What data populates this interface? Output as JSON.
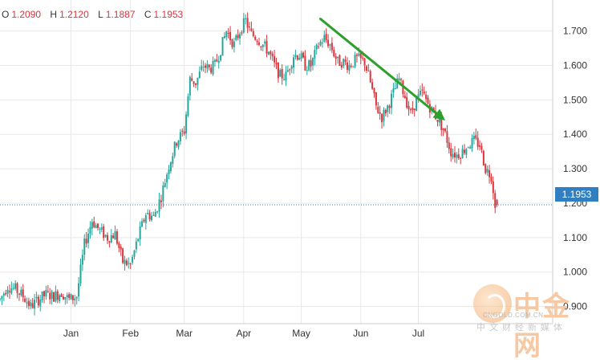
{
  "ohlc": {
    "o_label": "O",
    "o_value": "1.2090",
    "h_label": "H",
    "h_value": "1.2120",
    "l_label": "L",
    "l_value": "1.1887",
    "c_label": "C",
    "c_value": "1.1953"
  },
  "price_label": "1.1953",
  "watermark": {
    "name_cn": "中金网",
    "url": "CNGOLD.COM.CN",
    "subtitle": "中文财经新媒体"
  },
  "colors": {
    "up": "#26a69a",
    "down": "#d9363e",
    "grid": "#e8e8e8",
    "axis_text": "#333333",
    "arrow": "#2ca02c",
    "price_line": "#2f7fc1"
  },
  "chart_data": {
    "type": "candlestick",
    "title": "",
    "y_axis": {
      "range": [
        0.85,
        1.79
      ],
      "ticks": [
        0.9,
        1.0,
        1.1,
        1.2,
        1.3,
        1.4,
        1.5,
        1.6,
        1.7
      ],
      "tick_labels": [
        "0.900",
        "1.000",
        "1.100",
        "1.200",
        "1.300",
        "1.400",
        "1.500",
        "1.600",
        "1.700"
      ]
    },
    "x_axis": {
      "labels": [
        "Jan",
        "Feb",
        "Mar",
        "Apr",
        "May",
        "Jun",
        "Jul"
      ],
      "label_positions_day": [
        31,
        62,
        90,
        121,
        151,
        182,
        212
      ],
      "range_day": [
        -6,
        282
      ]
    },
    "last_price": 1.1953,
    "trend_arrow": {
      "direction": "down",
      "from": {
        "day": 161,
        "price": 1.735
      },
      "to": {
        "day": 226,
        "price": 1.44
      }
    },
    "anchors": [
      [
        -6,
        0.92
      ],
      [
        -2,
        0.96
      ],
      [
        2,
        0.95
      ],
      [
        6,
        0.93
      ],
      [
        10,
        0.9
      ],
      [
        14,
        0.92
      ],
      [
        18,
        0.935
      ],
      [
        22,
        0.93
      ],
      [
        26,
        0.94
      ],
      [
        30,
        0.92
      ],
      [
        34,
        0.93
      ],
      [
        38,
        1.08
      ],
      [
        42,
        1.15
      ],
      [
        46,
        1.12
      ],
      [
        50,
        1.1
      ],
      [
        54,
        1.11
      ],
      [
        58,
        1.03
      ],
      [
        62,
        1.02
      ],
      [
        66,
        1.1
      ],
      [
        70,
        1.17
      ],
      [
        74,
        1.16
      ],
      [
        78,
        1.22
      ],
      [
        82,
        1.31
      ],
      [
        86,
        1.38
      ],
      [
        90,
        1.41
      ],
      [
        93,
        1.56
      ],
      [
        96,
        1.55
      ],
      [
        100,
        1.6
      ],
      [
        103,
        1.59
      ],
      [
        106,
        1.6
      ],
      [
        108,
        1.63
      ],
      [
        112,
        1.7
      ],
      [
        116,
        1.66
      ],
      [
        119,
        1.7
      ],
      [
        122,
        1.73
      ],
      [
        125,
        1.69
      ],
      [
        128,
        1.68
      ],
      [
        131,
        1.66
      ],
      [
        134,
        1.64
      ],
      [
        137,
        1.6
      ],
      [
        140,
        1.57
      ],
      [
        143,
        1.57
      ],
      [
        147,
        1.63
      ],
      [
        150,
        1.63
      ],
      [
        153,
        1.6
      ],
      [
        156,
        1.6
      ],
      [
        160,
        1.66
      ],
      [
        163,
        1.68
      ],
      [
        166,
        1.66
      ],
      [
        170,
        1.61
      ],
      [
        173,
        1.61
      ],
      [
        176,
        1.6
      ],
      [
        180,
        1.62
      ],
      [
        184,
        1.61
      ],
      [
        187,
        1.55
      ],
      [
        190,
        1.48
      ],
      [
        193,
        1.45
      ],
      [
        196,
        1.48
      ],
      [
        199,
        1.52
      ],
      [
        202,
        1.56
      ],
      [
        205,
        1.51
      ],
      [
        208,
        1.46
      ],
      [
        211,
        1.5
      ],
      [
        214,
        1.52
      ],
      [
        217,
        1.49
      ],
      [
        220,
        1.46
      ],
      [
        223,
        1.44
      ],
      [
        226,
        1.4
      ],
      [
        229,
        1.35
      ],
      [
        232,
        1.34
      ],
      [
        235,
        1.35
      ],
      [
        238,
        1.37
      ],
      [
        241,
        1.38
      ],
      [
        244,
        1.37
      ],
      [
        247,
        1.3
      ],
      [
        250,
        1.28
      ],
      [
        252,
        1.2
      ]
    ],
    "y_precision": 3
  }
}
